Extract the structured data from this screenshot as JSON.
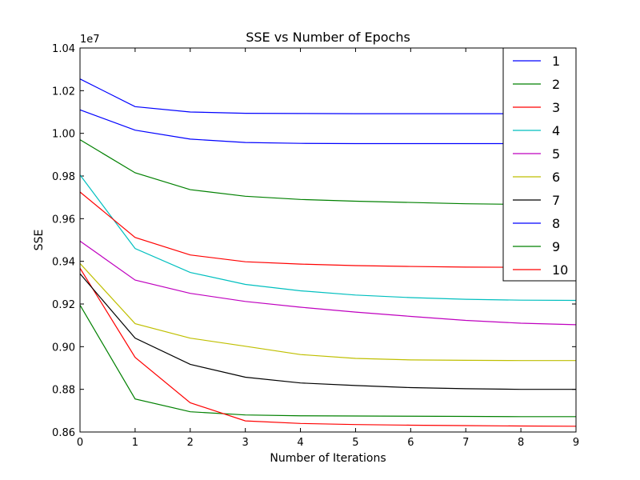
{
  "chart_data": {
    "type": "line",
    "title": "SSE vs Number of Epochs",
    "xlabel": "Number of Iterations",
    "ylabel": "SSE",
    "offset_label": "1e7",
    "xlim": [
      0,
      9
    ],
    "ylim": [
      0.86,
      1.04
    ],
    "xticks": [
      0,
      1,
      2,
      3,
      4,
      5,
      6,
      7,
      8,
      9
    ],
    "yticks": [
      "0.86",
      "0.88",
      "0.90",
      "0.92",
      "0.94",
      "0.96",
      "0.98",
      "1.00",
      "1.02",
      "1.04"
    ],
    "grid": false,
    "legend_position": "top-right",
    "x": [
      0,
      1,
      2,
      3,
      4,
      5,
      6,
      7,
      8,
      9
    ],
    "series": [
      {
        "name": "1",
        "color": "#0000ff",
        "values": [
          1.0255,
          1.0125,
          1.01,
          1.0094,
          1.0093,
          1.0092,
          1.0092,
          1.0092,
          1.0092,
          1.0092
        ]
      },
      {
        "name": "2",
        "color": "#008000",
        "values": [
          0.9195,
          0.8755,
          0.8695,
          0.868,
          0.8676,
          0.8675,
          0.8674,
          0.8673,
          0.8672,
          0.8672
        ]
      },
      {
        "name": "3",
        "color": "#ff0000",
        "values": [
          0.9368,
          0.895,
          0.8737,
          0.8652,
          0.864,
          0.8635,
          0.8632,
          0.863,
          0.8628,
          0.8627
        ]
      },
      {
        "name": "4",
        "color": "#00bfbf",
        "values": [
          0.9805,
          0.946,
          0.9348,
          0.9292,
          0.9262,
          0.9242,
          0.923,
          0.9222,
          0.9218,
          0.9217
        ]
      },
      {
        "name": "5",
        "color": "#bf00bf",
        "values": [
          0.9495,
          0.9312,
          0.925,
          0.9212,
          0.9185,
          0.9162,
          0.9142,
          0.9123,
          0.911,
          0.9103
        ]
      },
      {
        "name": "6",
        "color": "#bfbf00",
        "values": [
          0.939,
          0.9108,
          0.904,
          0.9002,
          0.8963,
          0.8945,
          0.8938,
          0.8936,
          0.8935,
          0.8935
        ]
      },
      {
        "name": "7",
        "color": "#000000",
        "values": [
          0.9342,
          0.904,
          0.8917,
          0.8857,
          0.883,
          0.8818,
          0.8808,
          0.8803,
          0.88,
          0.88
        ]
      },
      {
        "name": "8",
        "color": "#0000ff",
        "values": [
          1.011,
          1.0015,
          0.9973,
          0.9957,
          0.9953,
          0.9952,
          0.9952,
          0.9952,
          0.9952,
          0.9952
        ]
      },
      {
        "name": "9",
        "color": "#008000",
        "values": [
          0.997,
          0.9815,
          0.9736,
          0.9705,
          0.969,
          0.9682,
          0.9676,
          0.967,
          0.9667,
          0.9665
        ]
      },
      {
        "name": "10",
        "color": "#ff0000",
        "values": [
          0.9725,
          0.9512,
          0.943,
          0.9398,
          0.9387,
          0.938,
          0.9376,
          0.9373,
          0.9372,
          0.9371
        ]
      }
    ]
  }
}
